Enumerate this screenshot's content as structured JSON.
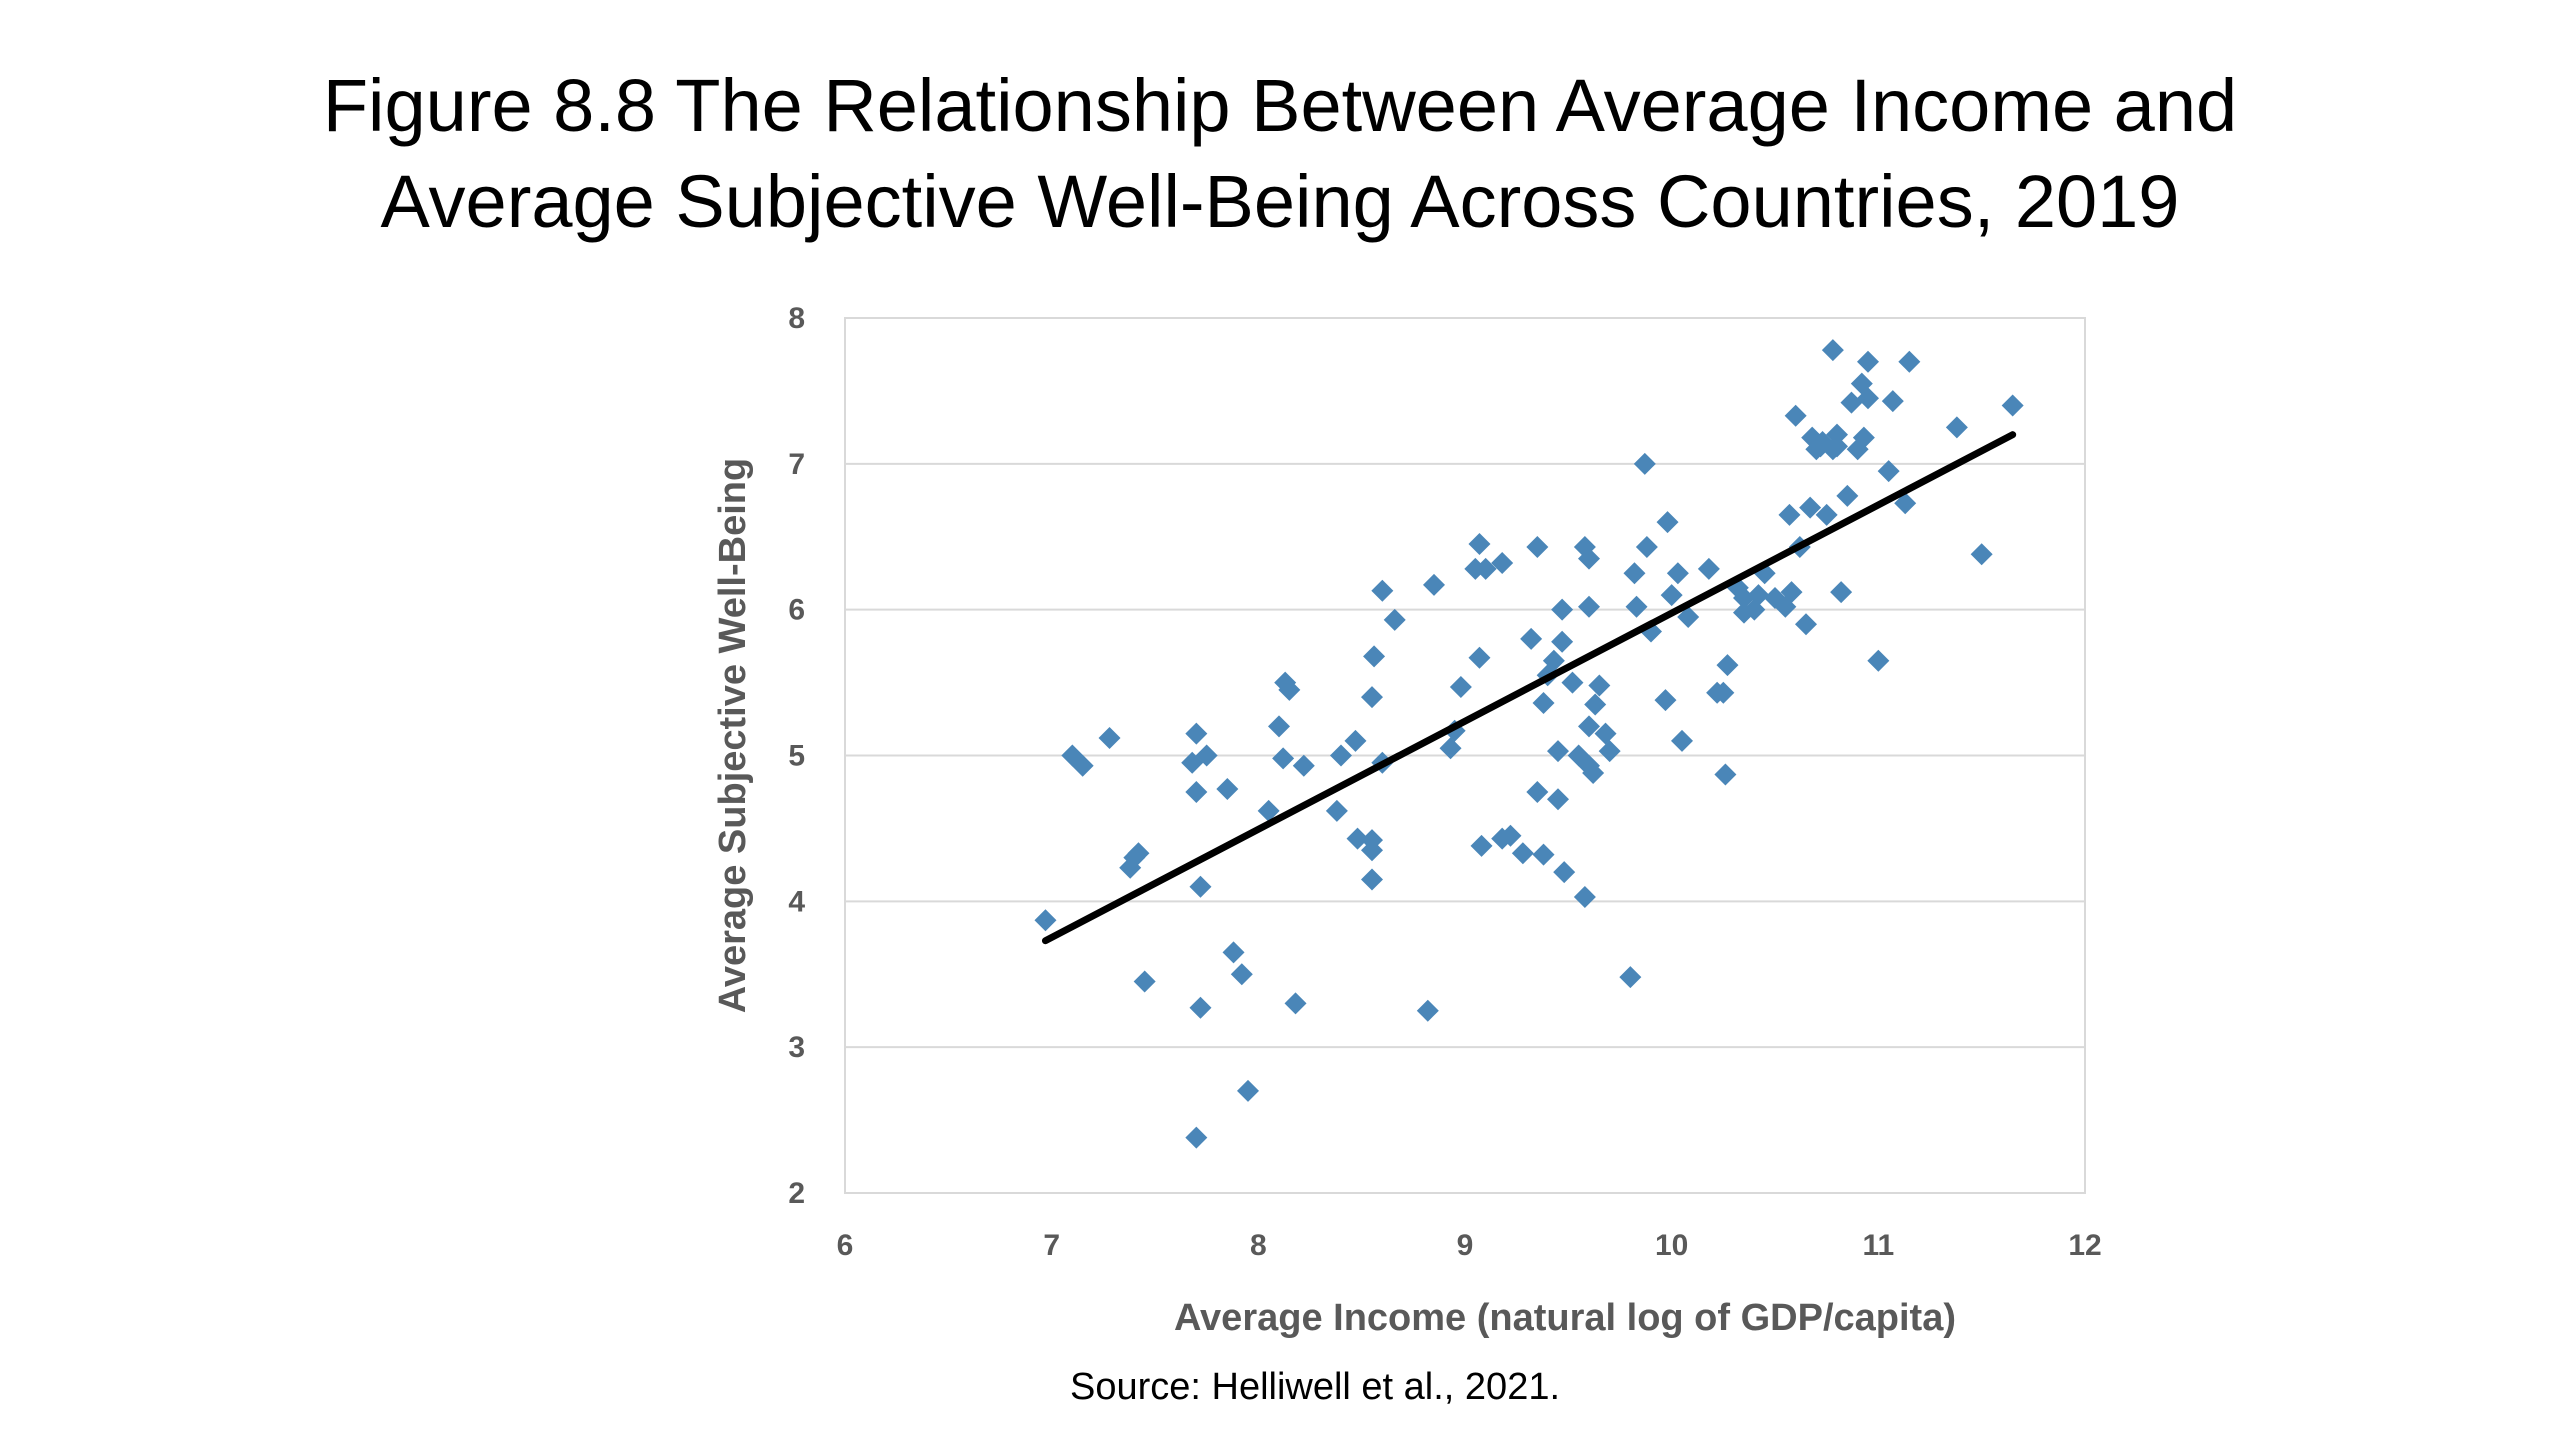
{
  "title": {
    "line1": "Figure 8.8 The Relationship Between Average Income and",
    "line2": "Average Subjective Well-Being Across Countries, 2019"
  },
  "source": "Source: Helliwell et al., 2021.",
  "colors": {
    "marker": "#4A86B8",
    "trendline": "#000000",
    "gridline": "#D9D9D9",
    "axis_text": "#595959"
  },
  "chart_data": {
    "type": "scatter",
    "xlabel": "Average Income (natural log of GDP/capita)",
    "ylabel": "Average Subjective Well-Being",
    "xlim": [
      6,
      12
    ],
    "ylim": [
      2,
      8
    ],
    "xticks": [
      "6",
      "7",
      "8",
      "9",
      "10",
      "11",
      "12"
    ],
    "yticks": [
      "2",
      "3",
      "4",
      "5",
      "6",
      "7",
      "8"
    ],
    "grid": "horizontal",
    "marker": "diamond",
    "trendline": {
      "x": [
        6.97,
        11.65
      ],
      "y": [
        3.73,
        7.2
      ]
    },
    "points": [
      [
        6.97,
        3.87
      ],
      [
        7.1,
        5.0
      ],
      [
        7.15,
        4.93
      ],
      [
        7.28,
        5.12
      ],
      [
        7.38,
        4.23
      ],
      [
        7.4,
        4.3
      ],
      [
        7.42,
        4.33
      ],
      [
        7.45,
        3.45
      ],
      [
        7.68,
        4.95
      ],
      [
        7.7,
        5.15
      ],
      [
        7.7,
        4.75
      ],
      [
        7.72,
        4.1
      ],
      [
        7.72,
        3.27
      ],
      [
        7.7,
        2.38
      ],
      [
        7.75,
        5.0
      ],
      [
        7.85,
        4.77
      ],
      [
        7.88,
        3.65
      ],
      [
        7.92,
        3.5
      ],
      [
        7.95,
        2.7
      ],
      [
        8.05,
        4.62
      ],
      [
        8.1,
        5.2
      ],
      [
        8.12,
        4.98
      ],
      [
        8.13,
        5.5
      ],
      [
        8.15,
        5.45
      ],
      [
        8.18,
        3.3
      ],
      [
        8.22,
        4.93
      ],
      [
        8.38,
        4.62
      ],
      [
        8.4,
        5.0
      ],
      [
        8.47,
        5.1
      ],
      [
        8.48,
        4.43
      ],
      [
        8.55,
        4.42
      ],
      [
        8.55,
        4.35
      ],
      [
        8.55,
        4.15
      ],
      [
        8.55,
        5.4
      ],
      [
        8.56,
        5.68
      ],
      [
        8.6,
        6.13
      ],
      [
        8.6,
        4.95
      ],
      [
        8.66,
        5.93
      ],
      [
        8.82,
        3.25
      ],
      [
        8.85,
        6.17
      ],
      [
        8.93,
        5.05
      ],
      [
        8.95,
        5.17
      ],
      [
        8.98,
        5.47
      ],
      [
        9.05,
        6.28
      ],
      [
        9.07,
        6.45
      ],
      [
        9.07,
        5.67
      ],
      [
        9.08,
        4.38
      ],
      [
        9.1,
        6.28
      ],
      [
        9.18,
        6.32
      ],
      [
        9.18,
        4.43
      ],
      [
        9.22,
        4.45
      ],
      [
        9.28,
        4.33
      ],
      [
        9.32,
        5.8
      ],
      [
        9.35,
        6.43
      ],
      [
        9.35,
        4.75
      ],
      [
        9.38,
        5.36
      ],
      [
        9.38,
        4.32
      ],
      [
        9.4,
        5.55
      ],
      [
        9.43,
        5.65
      ],
      [
        9.45,
        5.03
      ],
      [
        9.45,
        4.7
      ],
      [
        9.47,
        6.0
      ],
      [
        9.47,
        5.78
      ],
      [
        9.48,
        4.2
      ],
      [
        9.52,
        5.5
      ],
      [
        9.55,
        5.0
      ],
      [
        9.58,
        4.03
      ],
      [
        9.58,
        6.43
      ],
      [
        9.6,
        5.2
      ],
      [
        9.6,
        4.93
      ],
      [
        9.6,
        6.35
      ],
      [
        9.6,
        6.02
      ],
      [
        9.62,
        4.88
      ],
      [
        9.63,
        5.35
      ],
      [
        9.65,
        5.48
      ],
      [
        9.68,
        5.15
      ],
      [
        9.7,
        5.03
      ],
      [
        9.8,
        3.48
      ],
      [
        9.82,
        6.25
      ],
      [
        9.83,
        6.02
      ],
      [
        9.87,
        7.0
      ],
      [
        9.88,
        6.43
      ],
      [
        9.9,
        5.85
      ],
      [
        9.97,
        5.38
      ],
      [
        9.98,
        6.6
      ],
      [
        10.0,
        6.1
      ],
      [
        10.03,
        6.25
      ],
      [
        10.05,
        5.1
      ],
      [
        10.08,
        5.95
      ],
      [
        10.18,
        6.28
      ],
      [
        10.22,
        5.43
      ],
      [
        10.25,
        5.43
      ],
      [
        10.26,
        4.87
      ],
      [
        10.27,
        5.62
      ],
      [
        10.32,
        6.15
      ],
      [
        10.35,
        5.98
      ],
      [
        10.35,
        6.08
      ],
      [
        10.4,
        6.0
      ],
      [
        10.42,
        6.1
      ],
      [
        10.45,
        6.25
      ],
      [
        10.5,
        6.08
      ],
      [
        10.55,
        6.02
      ],
      [
        10.57,
        6.65
      ],
      [
        10.58,
        6.12
      ],
      [
        10.6,
        7.33
      ],
      [
        10.62,
        6.43
      ],
      [
        10.65,
        5.9
      ],
      [
        10.67,
        6.7
      ],
      [
        10.68,
        7.18
      ],
      [
        10.7,
        7.1
      ],
      [
        10.72,
        7.12
      ],
      [
        10.73,
        7.15
      ],
      [
        10.75,
        6.65
      ],
      [
        10.78,
        7.1
      ],
      [
        10.78,
        7.78
      ],
      [
        10.8,
        7.2
      ],
      [
        10.8,
        7.12
      ],
      [
        10.82,
        6.12
      ],
      [
        10.85,
        6.78
      ],
      [
        10.87,
        7.42
      ],
      [
        10.9,
        7.1
      ],
      [
        10.92,
        7.55
      ],
      [
        10.93,
        7.18
      ],
      [
        10.95,
        7.7
      ],
      [
        10.95,
        7.45
      ],
      [
        11.0,
        5.65
      ],
      [
        11.05,
        6.95
      ],
      [
        11.07,
        7.43
      ],
      [
        11.13,
        6.73
      ],
      [
        11.15,
        7.7
      ],
      [
        11.38,
        7.25
      ],
      [
        11.5,
        6.38
      ],
      [
        11.65,
        7.4
      ]
    ]
  }
}
